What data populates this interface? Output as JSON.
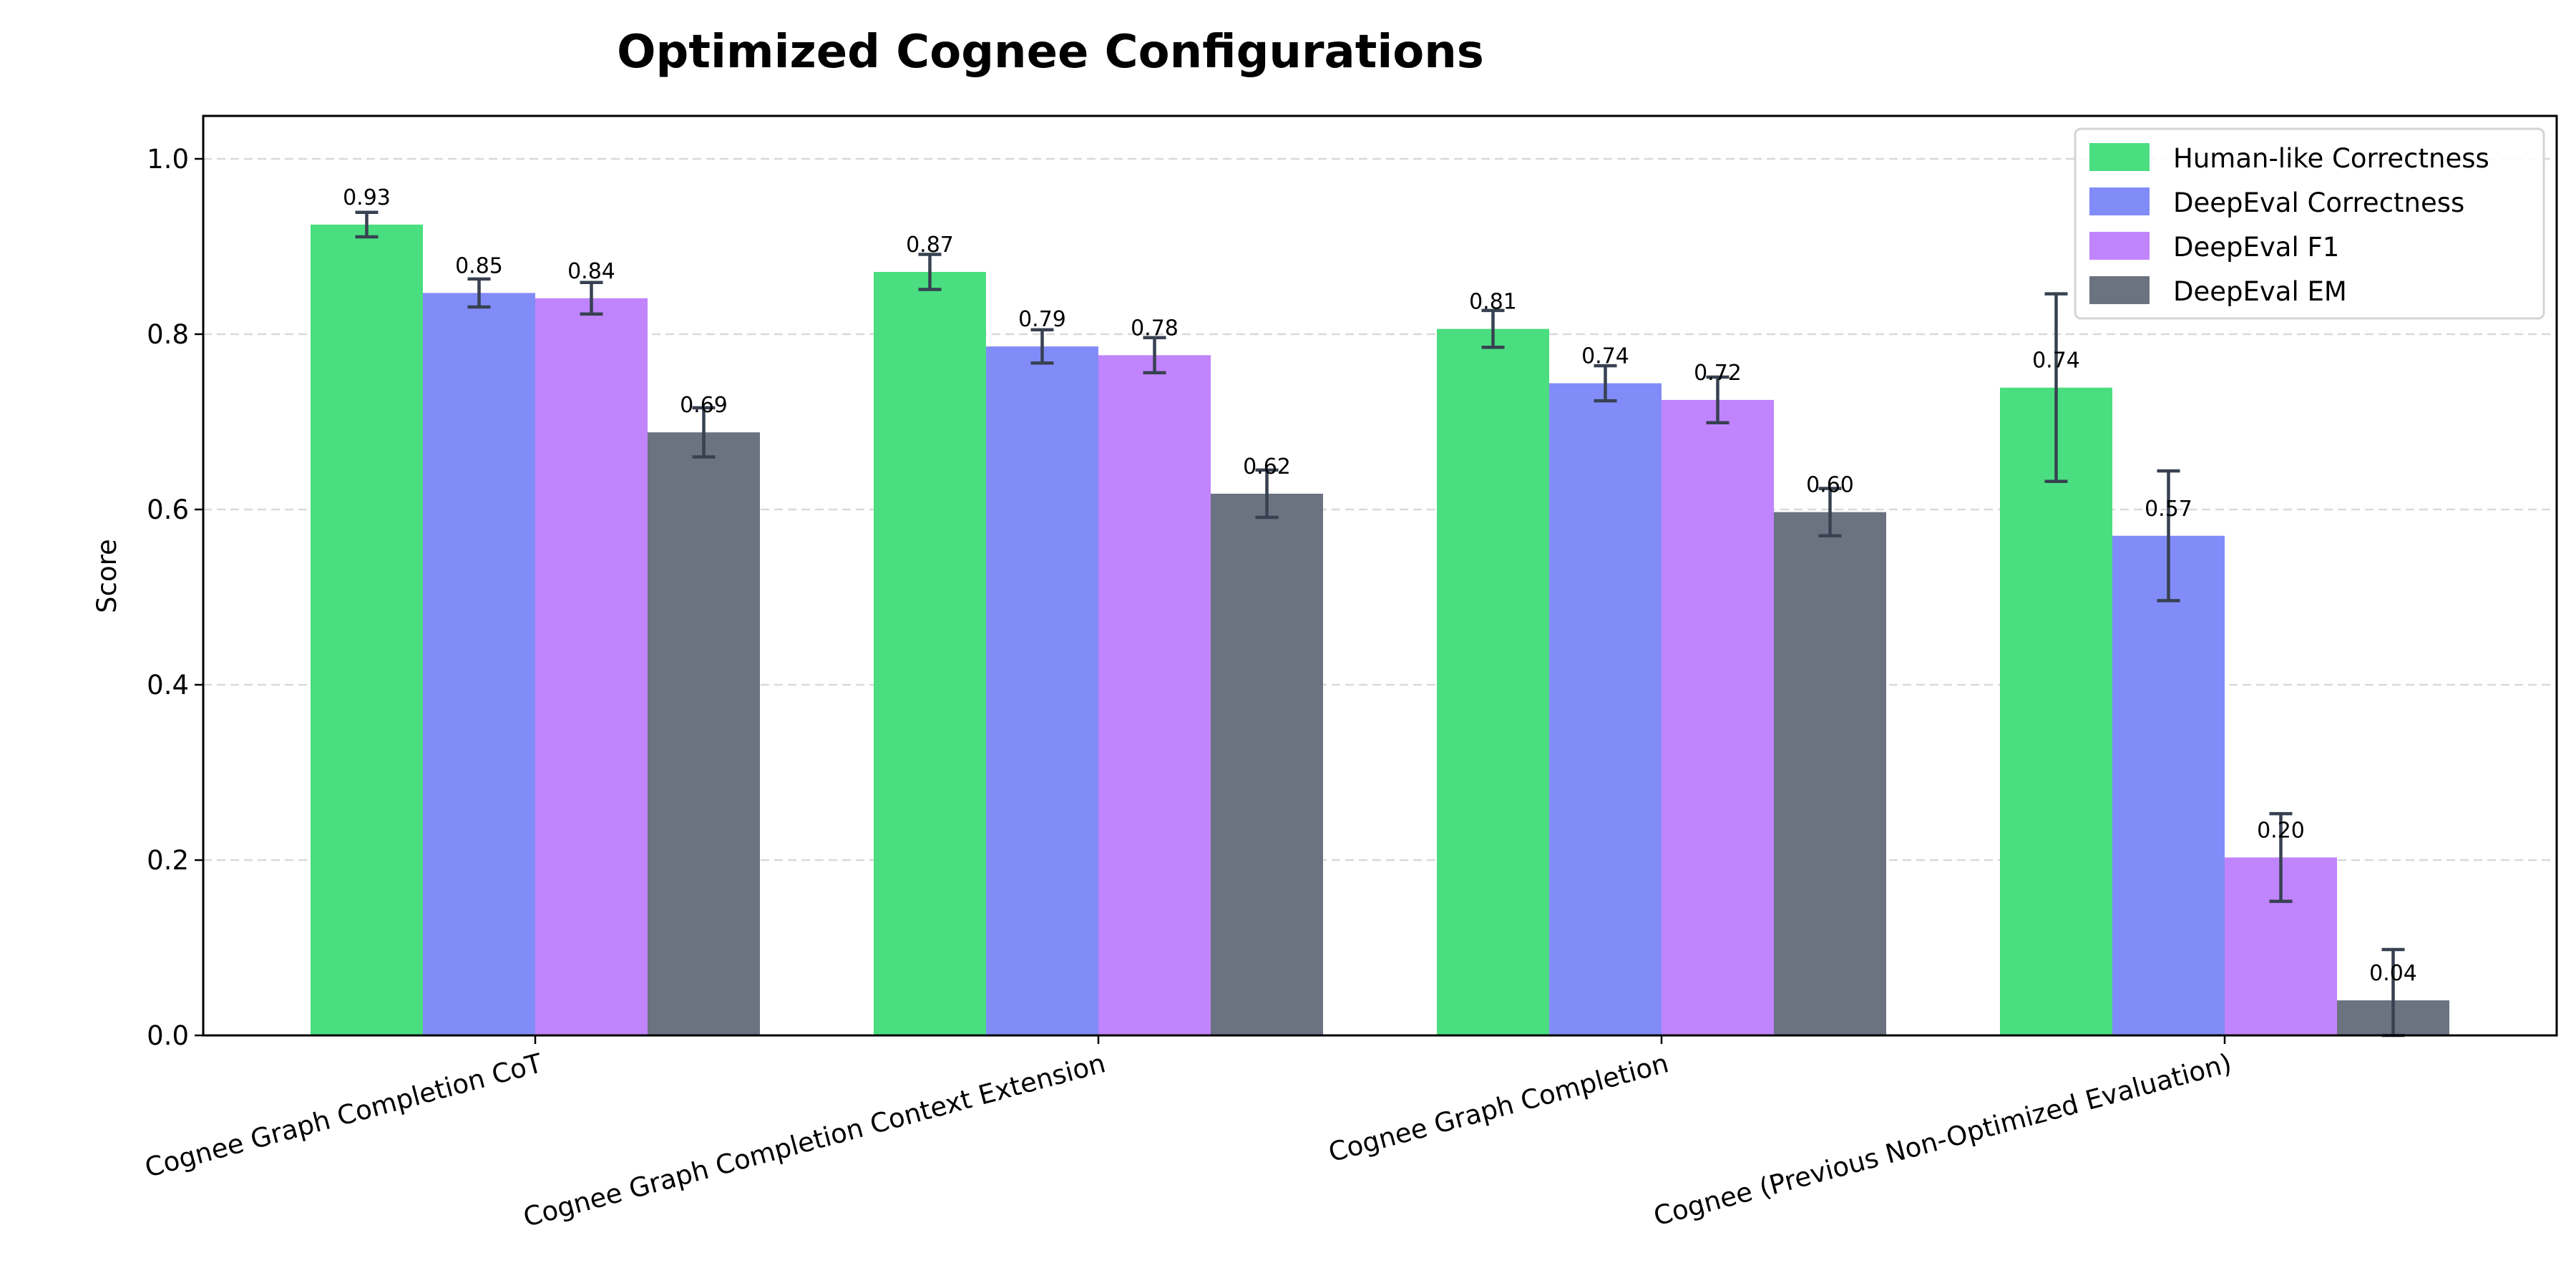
{
  "chart_data": {
    "type": "bar",
    "title": "Optimized Cognee Configurations",
    "xlabel": "",
    "ylabel": "Score",
    "ylim": [
      0,
      1.05
    ],
    "yticks": [
      "0.0",
      "0.2",
      "0.4",
      "0.6",
      "0.8",
      "1.0"
    ],
    "grid": "y dashed",
    "legend_position": "top-right",
    "categories": [
      "Cognee Graph Completion CoT",
      "Cognee Graph Completion Context Extension",
      "Cognee Graph Completion",
      "Cognee (Previous Non-Optimized Evaluation)"
    ],
    "series": [
      {
        "name": "Human-like Correctness",
        "color": "#4ade80",
        "values": [
          0.925,
          0.871,
          0.806,
          0.739
        ],
        "errors": [
          0.014,
          0.02,
          0.021,
          0.107
        ],
        "labels": [
          "0.93",
          "0.87",
          "0.81",
          "0.74"
        ]
      },
      {
        "name": "DeepEval Correctness",
        "color": "#818cf8",
        "values": [
          0.847,
          0.786,
          0.744,
          0.57
        ],
        "errors": [
          0.016,
          0.019,
          0.02,
          0.074
        ],
        "labels": [
          "0.85",
          "0.79",
          "0.74",
          "0.57"
        ]
      },
      {
        "name": "DeepEval F1",
        "color": "#c084fc",
        "values": [
          0.841,
          0.776,
          0.725,
          0.203
        ],
        "errors": [
          0.018,
          0.02,
          0.026,
          0.05
        ],
        "labels": [
          "0.84",
          "0.78",
          "0.72",
          "0.20"
        ]
      },
      {
        "name": "DeepEval EM",
        "color": "#6b7280",
        "values": [
          0.688,
          0.618,
          0.597,
          0.04
        ],
        "errors": [
          0.028,
          0.027,
          0.027,
          0.058
        ],
        "labels": [
          "0.69",
          "0.62",
          "0.60",
          "0.04"
        ]
      }
    ],
    "error_bar_color": "#374151"
  }
}
